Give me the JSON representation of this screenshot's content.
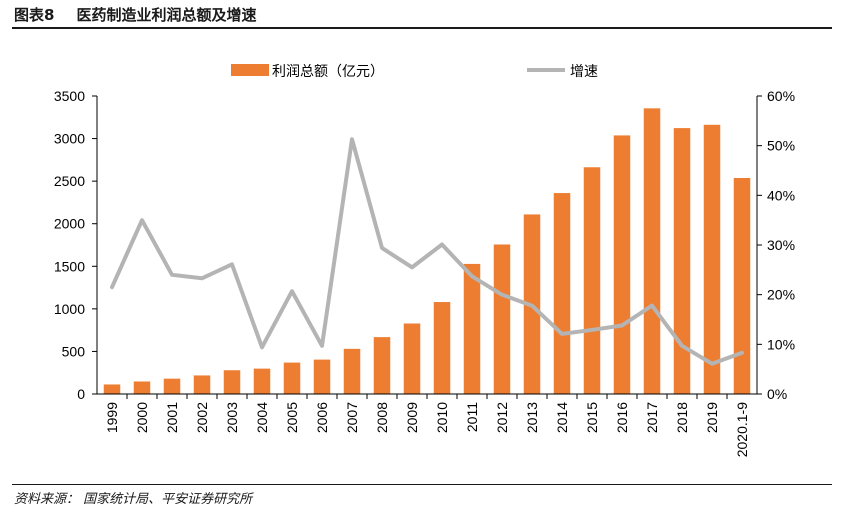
{
  "header": {
    "figure_number": "图表8",
    "title": "医药制造业利润总额及增速"
  },
  "source": "资料来源：  国家统计局、平安证券研究所",
  "chart_data": {
    "type": "bar+line",
    "title": "医药制造业利润总额及增速",
    "categories": [
      "1999",
      "2000",
      "2001",
      "2002",
      "2003",
      "2004",
      "2005",
      "2006",
      "2007",
      "2008",
      "2009",
      "2010",
      "2011",
      "2012",
      "2013",
      "2014",
      "2015",
      "2016",
      "2017",
      "2018",
      "2019",
      "2020.1-9"
    ],
    "series": [
      {
        "name": "利润总额（亿元）",
        "type": "bar",
        "axis": "left",
        "color": "#ED7D31",
        "values": [
          112,
          147,
          180,
          218,
          279,
          298,
          369,
          404,
          530,
          668,
          828,
          1080,
          1528,
          1756,
          2109,
          2360,
          2663,
          3037,
          3355,
          3123,
          3162,
          2537
        ]
      },
      {
        "name": "增速",
        "type": "line",
        "axis": "right",
        "unit": "%",
        "color": "#B4B4B4",
        "values": [
          21.5,
          35.0,
          24.0,
          23.3,
          26.1,
          9.4,
          20.7,
          9.7,
          51.3,
          29.4,
          25.5,
          30.1,
          23.7,
          20.0,
          17.8,
          12.1,
          12.9,
          13.8,
          17.8,
          9.7,
          6.1,
          8.3
        ]
      }
    ],
    "left_axis": {
      "ylim": [
        0,
        3500
      ],
      "ticks": [
        "0",
        "500",
        "1000",
        "1500",
        "2000",
        "2500",
        "3000",
        "3500"
      ]
    },
    "right_axis": {
      "ylim": [
        0,
        60
      ],
      "ticks": [
        "0%",
        "10%",
        "20%",
        "30%",
        "40%",
        "50%",
        "60%"
      ]
    },
    "legend": "top-center",
    "grid": false
  }
}
